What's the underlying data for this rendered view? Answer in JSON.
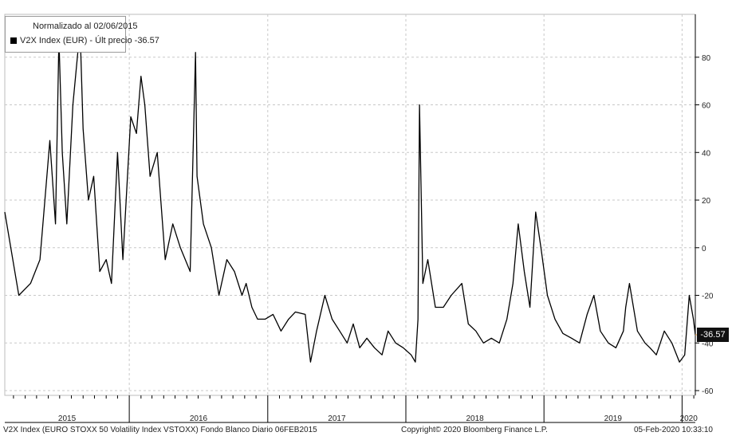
{
  "legend": {
    "title": "Normalizado al 02/06/2015",
    "series_label": "V2X Index (EUR) - Últ precio -36.57"
  },
  "last_value_tag": "-36.57",
  "footer": {
    "left": "V2X Index (EURO STOXX 50 Volatility Index VSTOXX) Fondo Blanco  Diario 06FEB2015",
    "center": "Copyright© 2020 Bloomberg Finance L.P.",
    "right": "05-Feb-2020 10:33:10"
  },
  "colors": {
    "line": "#000000",
    "grid": "#c8c8c8",
    "last_marker": "#e8a040"
  },
  "chart_data": {
    "type": "line",
    "title": "",
    "xlabel": "",
    "ylabel": "",
    "ylim": [
      -62,
      98
    ],
    "y_ticks": [
      -60,
      -40,
      -20,
      0,
      20,
      40,
      60,
      80
    ],
    "y_tick_labels": [
      "-60",
      "-40",
      "-20",
      "0",
      "20",
      "40",
      "60",
      "80"
    ],
    "grid": true,
    "x_year_labels": [
      "2015",
      "2016",
      "2017",
      "2018",
      "2019",
      "2020"
    ],
    "x_range": [
      "2015-02-06",
      "2020-02-05"
    ],
    "last_value": -36.57,
    "series": [
      {
        "name": "V2X Index (EUR)",
        "x": [
          "2015-02-06",
          "2015-03-15",
          "2015-04-15",
          "2015-05-10",
          "2015-06-05",
          "2015-06-20",
          "2015-06-29",
          "2015-07-08",
          "2015-07-20",
          "2015-08-05",
          "2015-08-24",
          "2015-09-01",
          "2015-09-15",
          "2015-09-29",
          "2015-10-15",
          "2015-11-01",
          "2015-11-15",
          "2015-12-01",
          "2015-12-15",
          "2016-01-05",
          "2016-01-20",
          "2016-02-01",
          "2016-02-11",
          "2016-02-25",
          "2016-03-15",
          "2016-04-05",
          "2016-04-25",
          "2016-05-15",
          "2016-06-10",
          "2016-06-24",
          "2016-06-28",
          "2016-07-15",
          "2016-08-05",
          "2016-08-25",
          "2016-09-15",
          "2016-10-05",
          "2016-10-25",
          "2016-11-05",
          "2016-11-20",
          "2016-12-05",
          "2016-12-25",
          "2017-01-15",
          "2017-02-05",
          "2017-02-25",
          "2017-03-15",
          "2017-04-10",
          "2017-04-24",
          "2017-05-10",
          "2017-06-01",
          "2017-06-20",
          "2017-07-10",
          "2017-07-30",
          "2017-08-15",
          "2017-09-01",
          "2017-09-20",
          "2017-10-10",
          "2017-10-30",
          "2017-11-15",
          "2017-12-05",
          "2017-12-25",
          "2018-01-15",
          "2018-01-26",
          "2018-02-02",
          "2018-02-06",
          "2018-02-15",
          "2018-02-28",
          "2018-03-20",
          "2018-04-10",
          "2018-05-01",
          "2018-05-29",
          "2018-06-15",
          "2018-07-05",
          "2018-07-25",
          "2018-08-15",
          "2018-09-05",
          "2018-09-25",
          "2018-10-11",
          "2018-10-25",
          "2018-11-10",
          "2018-11-25",
          "2018-12-10",
          "2018-12-24",
          "2019-01-10",
          "2019-01-30",
          "2019-02-20",
          "2019-03-15",
          "2019-04-05",
          "2019-04-25",
          "2019-05-13",
          "2019-05-30",
          "2019-06-20",
          "2019-07-10",
          "2019-07-30",
          "2019-08-05",
          "2019-08-15",
          "2019-09-05",
          "2019-09-25",
          "2019-10-08",
          "2019-10-25",
          "2019-11-15",
          "2019-12-05",
          "2019-12-25",
          "2020-01-08",
          "2020-01-20",
          "2020-01-31",
          "2020-02-05"
        ],
        "y": [
          15,
          -20,
          -15,
          -5,
          45,
          10,
          88,
          40,
          10,
          60,
          92,
          50,
          20,
          30,
          -10,
          -5,
          -15,
          40,
          -5,
          55,
          48,
          72,
          60,
          30,
          40,
          -5,
          10,
          0,
          -10,
          82,
          30,
          10,
          0,
          -20,
          -5,
          -10,
          -20,
          -15,
          -25,
          -30,
          -30,
          -28,
          -35,
          -30,
          -27,
          -28,
          -48,
          -35,
          -20,
          -30,
          -35,
          -40,
          -32,
          -42,
          -38,
          -42,
          -45,
          -35,
          -40,
          -42,
          -45,
          -48,
          -30,
          60,
          -15,
          -5,
          -25,
          -25,
          -20,
          -15,
          -32,
          -35,
          -40,
          -38,
          -40,
          -30,
          -15,
          10,
          -10,
          -25,
          15,
          0,
          -20,
          -30,
          -36,
          -38,
          -40,
          -28,
          -20,
          -35,
          -40,
          -42,
          -35,
          -25,
          -15,
          -35,
          -40,
          -42,
          -45,
          -35,
          -40,
          -48,
          -45,
          -20,
          -30,
          -36.57
        ]
      }
    ]
  }
}
